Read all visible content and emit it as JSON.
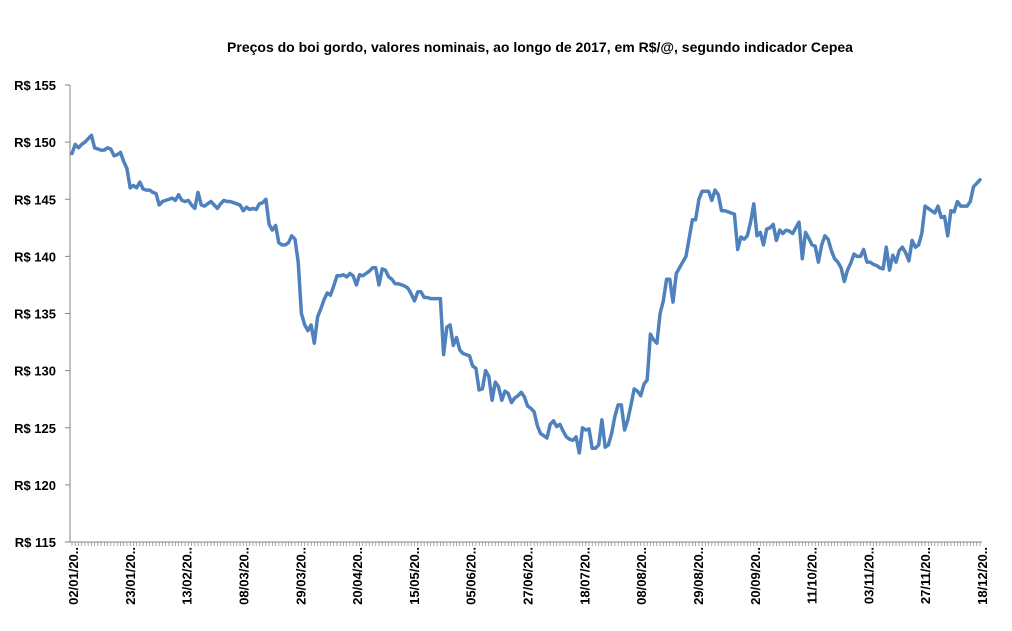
{
  "chart_data": {
    "type": "line",
    "title": "Preços do boi gordo, valores nominais, ao longo de 2017, em R$/@,  segundo indicador Cepea",
    "xlabel": "",
    "ylabel": "",
    "ylim": [
      115,
      155
    ],
    "y_ticks": [
      "R$ 115",
      "R$ 120",
      "R$ 125",
      "R$ 130",
      "R$ 135",
      "R$ 140",
      "R$ 145",
      "R$ 150",
      "R$ 155"
    ],
    "x_tick_labels": [
      "02/01/20..",
      "23/01/20..",
      "13/02/20..",
      "08/03/20..",
      "29/03/20..",
      "20/04/20..",
      "15/05/20..",
      "05/06/20..",
      "27/06/20..",
      "18/07/20..",
      "08/08/20..",
      "29/08/20..",
      "20/09/20..",
      "11/10/20..",
      "03/11/20..",
      "27/11/20..",
      "18/12/20.."
    ],
    "grid": false,
    "legend": "none",
    "series": [
      {
        "color": "#4f81bd",
        "values": [
          149.0,
          149.8,
          149.5,
          149.8,
          150.0,
          150.3,
          150.6,
          149.5,
          149.4,
          149.3,
          149.3,
          149.5,
          149.4,
          148.8,
          148.9,
          149.1,
          148.3,
          147.7,
          146.0,
          146.2,
          146.0,
          146.5,
          145.9,
          145.8,
          145.8,
          145.6,
          145.5,
          144.5,
          144.8,
          144.9,
          145.0,
          145.1,
          144.9,
          145.4,
          144.9,
          144.8,
          144.9,
          144.5,
          144.2,
          145.6,
          144.5,
          144.4,
          144.6,
          144.8,
          144.5,
          144.2,
          144.6,
          144.9,
          144.8,
          144.8,
          144.7,
          144.6,
          144.5,
          144.0,
          144.3,
          144.1,
          144.2,
          144.1,
          144.6,
          144.7,
          145.0,
          142.8,
          142.3,
          142.7,
          141.2,
          141.0,
          141.0,
          141.2,
          141.8,
          141.5,
          139.5,
          135.0,
          134.0,
          133.5,
          134.0,
          132.4,
          134.7,
          135.4,
          136.2,
          136.8,
          136.6,
          137.4,
          138.3,
          138.3,
          138.4,
          138.2,
          138.5,
          138.3,
          137.5,
          138.4,
          138.3,
          138.5,
          138.7,
          139.0,
          139.0,
          137.5,
          138.9,
          138.8,
          138.2,
          138.0,
          137.6,
          137.6,
          137.5,
          137.4,
          137.2,
          136.7,
          136.1,
          136.9,
          136.9,
          136.4,
          136.4,
          136.3,
          136.3,
          136.3,
          136.3,
          131.4,
          133.8,
          134.0,
          132.2,
          132.9,
          131.8,
          131.5,
          131.4,
          131.3,
          130.4,
          130.2,
          128.3,
          128.4,
          130.0,
          129.5,
          127.4,
          129.0,
          128.6,
          127.4,
          128.2,
          128.0,
          127.2,
          127.6,
          127.8,
          128.1,
          127.7,
          126.9,
          126.7,
          126.4,
          125.2,
          124.5,
          124.3,
          124.1,
          125.3,
          125.6,
          125.1,
          125.3,
          124.7,
          124.2,
          124.0,
          123.9,
          124.2,
          122.8,
          125.0,
          124.8,
          124.9,
          123.2,
          123.2,
          123.5,
          125.7,
          123.3,
          123.5,
          124.5,
          126.0,
          127.0,
          127.0,
          124.8,
          125.7,
          127.0,
          128.4,
          128.2,
          127.8,
          128.8,
          129.2,
          133.2,
          132.7,
          132.4,
          135.0,
          136.1,
          138.0,
          138.0,
          136.0,
          138.5,
          139.0,
          139.5,
          140.0,
          141.6,
          143.2,
          143.2,
          145.0,
          145.7,
          145.7,
          145.7,
          144.9,
          145.8,
          145.4,
          144.0,
          144.0,
          143.9,
          143.8,
          143.7,
          140.6,
          141.7,
          141.5,
          141.8,
          143.0,
          144.6,
          141.8,
          142.1,
          141.0,
          142.4,
          142.5,
          142.8,
          141.4,
          142.3,
          142.0,
          142.3,
          142.2,
          142.0,
          142.5,
          143.0,
          139.8,
          142.1,
          141.6,
          141.0,
          140.9,
          139.5,
          141.0,
          141.8,
          141.5,
          140.5,
          139.8,
          139.5,
          139.0,
          137.8,
          138.8,
          139.4,
          140.2,
          140.0,
          140.0,
          140.6,
          139.5,
          139.5,
          139.3,
          139.2,
          139.0,
          138.9,
          140.8,
          138.8,
          140.1,
          139.5,
          140.5,
          140.8,
          140.3,
          139.6,
          141.4,
          140.8,
          141.0,
          142.0,
          144.4,
          144.2,
          144.0,
          143.8,
          144.4,
          143.4,
          143.5,
          141.8,
          144.0,
          143.9,
          144.8,
          144.4,
          144.4,
          144.4,
          144.8,
          146.1,
          146.4,
          146.7
        ]
      }
    ]
  }
}
